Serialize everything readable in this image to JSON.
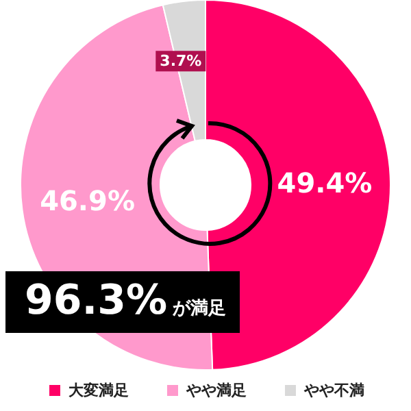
{
  "chart_data": {
    "type": "donut",
    "categories": [
      "大変満足",
      "やや満足",
      "やや不満"
    ],
    "values": [
      49.4,
      46.9,
      3.7
    ],
    "colors": [
      "#ff0066",
      "#ff99cc",
      "#d9d9d9"
    ],
    "value_labels": [
      "49.4%",
      "46.9%",
      "3.7%"
    ],
    "legend": "bottom",
    "annotations": [
      "96.3%が満足"
    ]
  }
}
